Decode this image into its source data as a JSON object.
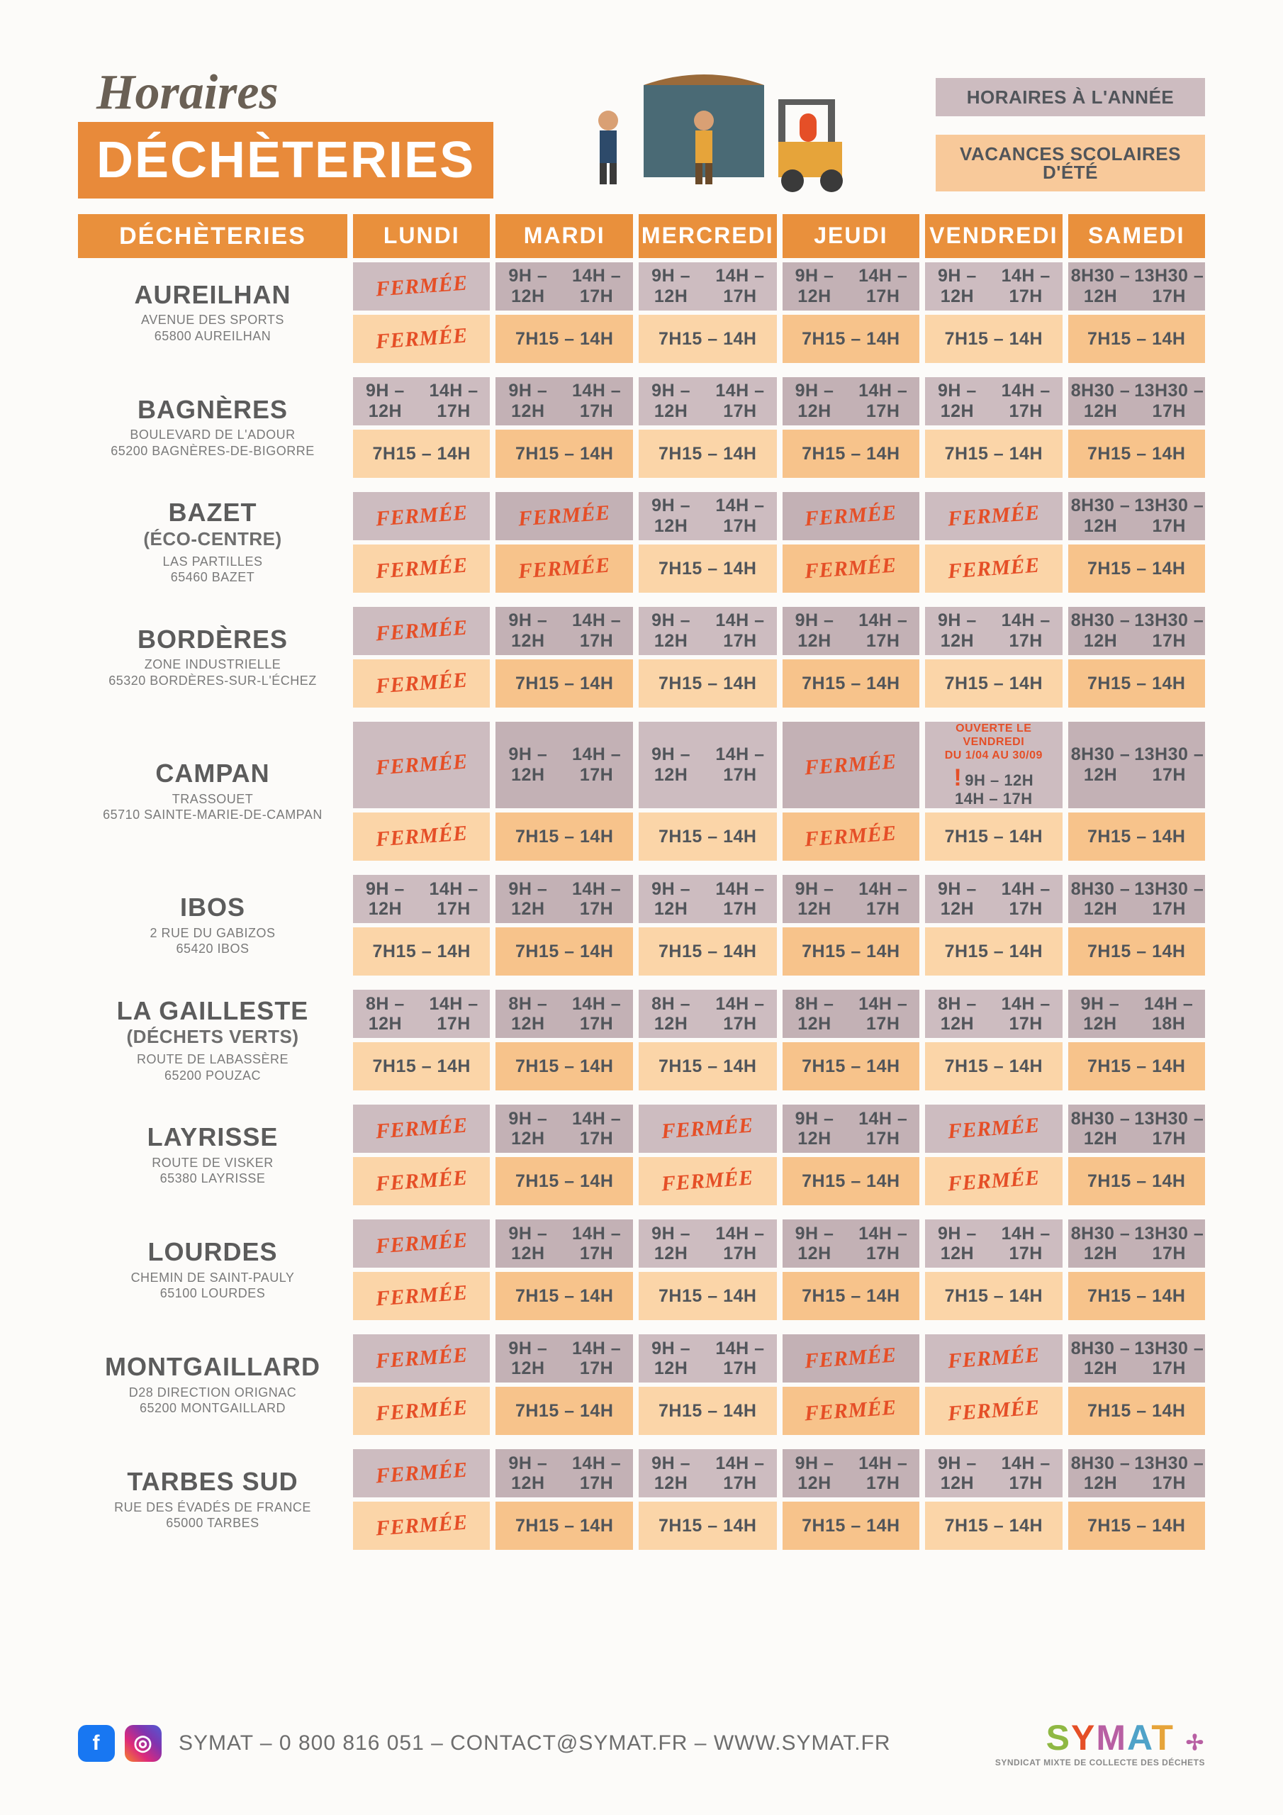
{
  "header": {
    "horaires": "Horaires",
    "decheteries": "DÉCHÈTERIES",
    "legend_year": "HORAIRES À L'ANNÉE",
    "legend_summer": "VACANCES SCOLAIRES D'ÉTÉ"
  },
  "columns": {
    "c0": "DÉCHÈTERIES",
    "c1": "LUNDI",
    "c2": "MARDI",
    "c3": "MERCREDI",
    "c4": "JEUDI",
    "c5": "VENDREDI",
    "c6": "SAMEDI"
  },
  "closed": "FERMÉE",
  "hours": {
    "std": "9H – 12H\n14H – 17H",
    "sat": "8H30 – 12H\n13H30 – 17H",
    "sum": "7H15 – 14H",
    "g8": "8H – 12H\n14H – 17H",
    "gsat": "9H – 12H\n14H – 18H"
  },
  "campan_note": {
    "title": "OUVERTE LE VENDREDI",
    "period": "DU 1/04 AU 30/09",
    "l1": "9H – 12H",
    "l2": "14H – 17H"
  },
  "sites": [
    {
      "name": "AUREILHAN",
      "addr": "AVENUE DES SPORTS\n65800 AUREILHAN",
      "year": [
        "CLOSED",
        "std",
        "std",
        "std",
        "std",
        "sat"
      ],
      "summer": [
        "CLOSED",
        "sum",
        "sum",
        "sum",
        "sum",
        "sum"
      ]
    },
    {
      "name": "BAGNÈRES",
      "addr": "BOULEVARD DE L'ADOUR\n65200 BAGNÈRES-DE-BIGORRE",
      "year": [
        "std",
        "std",
        "std",
        "std",
        "std",
        "sat"
      ],
      "summer": [
        "sum",
        "sum",
        "sum",
        "sum",
        "sum",
        "sum"
      ]
    },
    {
      "name": "BAZET",
      "sub": "(ÉCO-CENTRE)",
      "addr": "LAS PARTILLES\n65460 BAZET",
      "year": [
        "CLOSED",
        "CLOSED",
        "std",
        "CLOSED",
        "CLOSED",
        "sat"
      ],
      "summer": [
        "CLOSED",
        "CLOSED",
        "sum",
        "CLOSED",
        "CLOSED",
        "sum"
      ]
    },
    {
      "name": "BORDÈRES",
      "addr": "ZONE INDUSTRIELLE\n65320 BORDÈRES-SUR-L'ÉCHEZ",
      "year": [
        "CLOSED",
        "std",
        "std",
        "std",
        "std",
        "sat"
      ],
      "summer": [
        "CLOSED",
        "sum",
        "sum",
        "sum",
        "sum",
        "sum"
      ]
    },
    {
      "name": "CAMPAN",
      "addr": "TRASSOUET\n65710 SAINTE-MARIE-DE-CAMPAN",
      "year": [
        "CLOSED",
        "std",
        "std",
        "CLOSED",
        "NOTE",
        "sat"
      ],
      "summer": [
        "CLOSED",
        "sum",
        "sum",
        "CLOSED",
        "sum",
        "sum"
      ]
    },
    {
      "name": "IBOS",
      "addr": "2 RUE DU GABIZOS\n65420 IBOS",
      "year": [
        "std",
        "std",
        "std",
        "std",
        "std",
        "sat"
      ],
      "summer": [
        "sum",
        "sum",
        "sum",
        "sum",
        "sum",
        "sum"
      ]
    },
    {
      "name": "LA GAILLESTE",
      "sub": "(DÉCHETS VERTS)",
      "addr": "ROUTE DE LABASSÈRE\n65200 POUZAC",
      "year": [
        "g8",
        "g8",
        "g8",
        "g8",
        "g8",
        "gsat"
      ],
      "summer": [
        "sum",
        "sum",
        "sum",
        "sum",
        "sum",
        "sum"
      ]
    },
    {
      "name": "LAYRISSE",
      "addr": "ROUTE DE VISKER\n65380 LAYRISSE",
      "year": [
        "CLOSED",
        "std",
        "CLOSED",
        "std",
        "CLOSED",
        "sat"
      ],
      "summer": [
        "CLOSED",
        "sum",
        "CLOSED",
        "sum",
        "CLOSED",
        "sum"
      ]
    },
    {
      "name": "LOURDES",
      "addr": "CHEMIN DE SAINT-PAULY\n65100 LOURDES",
      "year": [
        "CLOSED",
        "std",
        "std",
        "std",
        "std",
        "sat"
      ],
      "summer": [
        "CLOSED",
        "sum",
        "sum",
        "sum",
        "sum",
        "sum"
      ]
    },
    {
      "name": "MONTGAILLARD",
      "addr": "D28 DIRECTION ORIGNAC\n65200 MONTGAILLARD",
      "year": [
        "CLOSED",
        "std",
        "std",
        "CLOSED",
        "CLOSED",
        "sat"
      ],
      "summer": [
        "CLOSED",
        "sum",
        "sum",
        "CLOSED",
        "CLOSED",
        "sum"
      ]
    },
    {
      "name": "TARBES SUD",
      "addr": "RUE DES ÉVADÉS DE FRANCE\n65000 TARBES",
      "year": [
        "CLOSED",
        "std",
        "std",
        "std",
        "std",
        "sat"
      ],
      "summer": [
        "CLOSED",
        "sum",
        "sum",
        "sum",
        "sum",
        "sum"
      ]
    }
  ],
  "footer": {
    "text": "SYMAT – 0 800 816 051 – CONTACT@SYMAT.FR – WWW.SYMAT.FR",
    "brand_tag": "SYNDICAT MIXTE DE COLLECTE DES DÉCHETS"
  },
  "colors": {
    "orange": "#e88a3a",
    "orange_closed": "#e54f27",
    "mauve": "#b8a4a8",
    "mauve_light": "#cdbcc0",
    "orange_light": "#f8c99a",
    "bg": "#fcfbf9",
    "grey": "#51555a"
  }
}
